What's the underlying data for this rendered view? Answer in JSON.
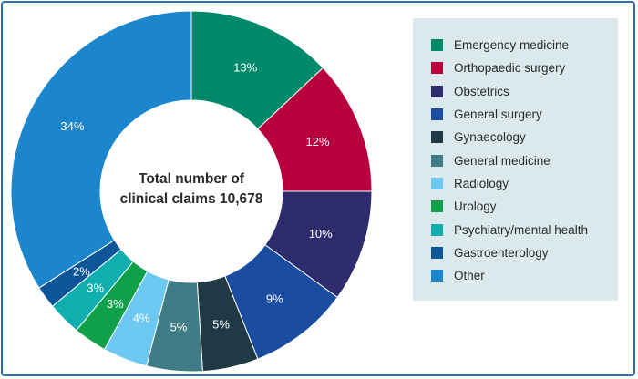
{
  "chart_data": {
    "type": "donut",
    "center_text": [
      "Total number of",
      "clinical claims 10,678"
    ],
    "categories": [
      "Emergency medicine",
      "Orthopaedic surgery",
      "Obstetrics",
      "General surgery",
      "Gynaecology",
      "General medicine",
      "Radiology",
      "Urology",
      "Psychiatry/mental health",
      "Gastroenterology",
      "Other"
    ],
    "values": [
      13,
      12,
      10,
      9,
      5,
      5,
      4,
      3,
      3,
      2,
      34
    ],
    "labels": [
      "13%",
      "12%",
      "10%",
      "9%",
      "5%",
      "5%",
      "4%",
      "3%",
      "3%",
      "2%",
      "34%"
    ],
    "colors": [
      "#00896b",
      "#b8003c",
      "#2f2c6e",
      "#1a4da0",
      "#1f3a44",
      "#3f7c86",
      "#6cc8f0",
      "#10a04a",
      "#10aeae",
      "#0e5697",
      "#1b86cc"
    ],
    "legend_position": "right"
  }
}
